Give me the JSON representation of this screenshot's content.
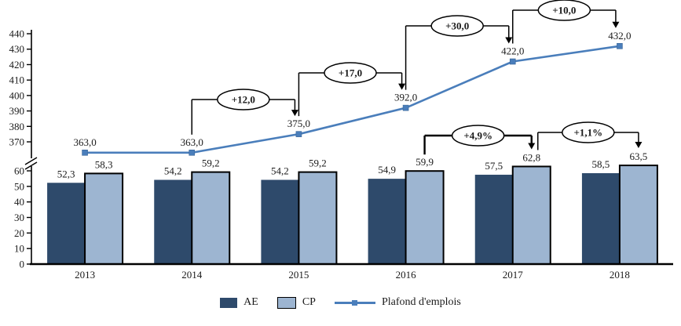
{
  "chart_data": {
    "type": "bar+line combo",
    "title": "",
    "categories": [
      "2013",
      "2014",
      "2015",
      "2016",
      "2017",
      "2018"
    ],
    "bar_series": [
      {
        "name": "AE",
        "color": "#2E4A6B",
        "values": [
          52.3,
          54.2,
          54.2,
          54.9,
          57.5,
          58.5
        ],
        "labels": [
          "52,3",
          "54,2",
          "54,2",
          "54,9",
          "57,5",
          "58,5"
        ]
      },
      {
        "name": "CP",
        "color": "#9DB5D1",
        "border_color": "#000000",
        "values": [
          58.3,
          59.2,
          59.2,
          59.9,
          62.8,
          63.5
        ],
        "labels": [
          "58,3",
          "59,2",
          "59,2",
          "59,9",
          "62,8",
          "63,5"
        ]
      }
    ],
    "line_series": {
      "name": "Plafond d'emplois",
      "color": "#4A7EBB",
      "values": [
        363,
        363,
        375,
        392,
        422,
        432
      ],
      "labels": [
        "363,0",
        "363,0",
        "375,0",
        "392,0",
        "422,0",
        "432,0"
      ]
    },
    "y_axis": {
      "broken_axis": true,
      "upper_ticks": [
        370,
        380,
        390,
        400,
        410,
        420,
        430,
        440
      ],
      "lower_ticks": [
        0,
        10,
        20,
        30,
        40,
        50,
        60
      ]
    },
    "annotations": {
      "line_deltas": [
        {
          "label": "+12,0",
          "from_index": 1,
          "to_index": 2
        },
        {
          "label": "+17,0",
          "from_index": 2,
          "to_index": 3
        },
        {
          "label": "+30,0",
          "from_index": 3,
          "to_index": 4
        },
        {
          "label": "+10,0",
          "from_index": 4,
          "to_index": 5
        }
      ],
      "cp_growth": [
        {
          "label": "+4,9%",
          "from_index": 3,
          "to_index": 4
        },
        {
          "label": "+1,1%",
          "from_index": 4,
          "to_index": 5
        }
      ]
    },
    "legend": [
      {
        "label": "AE",
        "swatch": "bar-dark"
      },
      {
        "label": "CP",
        "swatch": "bar-light"
      },
      {
        "label": "Plafond d'emplois",
        "swatch": "line"
      }
    ],
    "grid": "off",
    "legend_position": "bottom-center"
  }
}
